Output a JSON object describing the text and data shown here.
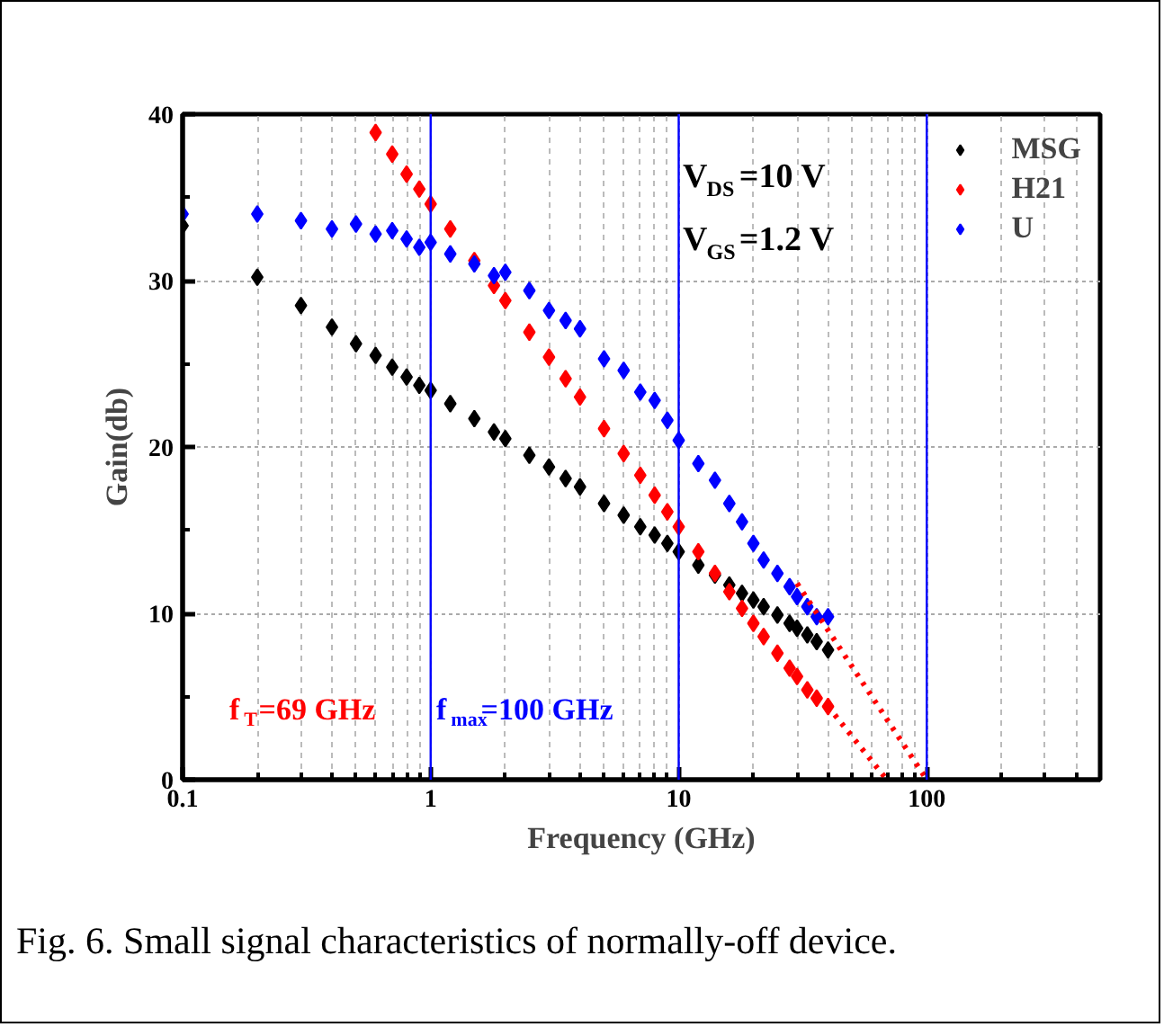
{
  "chart_data": {
    "type": "scatter",
    "xlabel": "Frequency (GHz)",
    "ylabel": "Gain(db)",
    "log": "x",
    "xlim": [
      0.1,
      500
    ],
    "ylim": [
      0,
      40
    ],
    "xticks": [
      0.1,
      1,
      10,
      100
    ],
    "yticks": [
      0,
      10,
      20,
      30,
      40
    ],
    "grid": true,
    "legend": "top right",
    "marker": "diamond",
    "series": [
      {
        "name": "MSG",
        "color": "#000000",
        "x": [
          0.1,
          0.2,
          0.3,
          0.4,
          0.5,
          0.6,
          0.7,
          0.8,
          0.9,
          1,
          1.2,
          1.5,
          1.8,
          2,
          2.5,
          3,
          3.5,
          4,
          5,
          6,
          7,
          8,
          9,
          10,
          12,
          14,
          16,
          18,
          20,
          22,
          25,
          28,
          30,
          33,
          36,
          40
        ],
        "values": [
          33.3,
          30.2,
          28.5,
          27.2,
          26.2,
          25.5,
          24.8,
          24.2,
          23.7,
          23.4,
          22.6,
          21.7,
          20.9,
          20.5,
          19.5,
          18.8,
          18.1,
          17.6,
          16.6,
          15.9,
          15.2,
          14.7,
          14.2,
          13.7,
          12.9,
          12.3,
          11.7,
          11.2,
          10.8,
          10.4,
          9.9,
          9.4,
          9.1,
          8.7,
          8.3,
          7.8
        ]
      },
      {
        "name": "H21",
        "color": "#ff0000",
        "x": [
          0.6,
          0.7,
          0.8,
          0.9,
          1,
          1.2,
          1.5,
          1.8,
          2,
          2.5,
          3,
          3.5,
          4,
          5,
          6,
          7,
          8,
          9,
          10,
          12,
          14,
          16,
          18,
          20,
          22,
          25,
          28,
          30,
          33,
          36,
          40
        ],
        "values": [
          38.9,
          37.6,
          36.4,
          35.5,
          34.6,
          33.1,
          31.2,
          29.7,
          28.8,
          26.9,
          25.4,
          24.1,
          23.0,
          21.1,
          19.6,
          18.3,
          17.1,
          16.1,
          15.2,
          13.7,
          12.4,
          11.3,
          10.3,
          9.4,
          8.6,
          7.6,
          6.7,
          6.2,
          5.4,
          4.9,
          4.4
        ]
      },
      {
        "name": "U",
        "color": "#0000ff",
        "x": [
          0.1,
          0.2,
          0.3,
          0.4,
          0.5,
          0.6,
          0.7,
          0.8,
          0.9,
          1,
          1.2,
          1.5,
          1.8,
          2,
          2.5,
          3,
          3.5,
          4,
          5,
          6,
          7,
          8,
          9,
          10,
          12,
          14,
          16,
          18,
          20,
          22,
          25,
          28,
          30,
          33,
          36,
          40
        ],
        "values": [
          34.0,
          34.0,
          33.6,
          33.1,
          33.4,
          32.8,
          33.0,
          32.5,
          32.0,
          32.3,
          31.6,
          31.0,
          30.3,
          30.5,
          29.4,
          28.2,
          27.6,
          27.1,
          25.3,
          24.6,
          23.3,
          22.8,
          21.6,
          20.4,
          19.0,
          18.0,
          16.6,
          15.5,
          14.2,
          13.2,
          12.4,
          11.6,
          11.0,
          10.4,
          9.8,
          9.8
        ]
      },
      {
        "type": "line",
        "color": "#ff0000",
        "line_style": "dotted",
        "marker": "none",
        "x": [
          40,
          69
        ],
        "values": [
          4.4,
          0
        ]
      },
      {
        "type": "line",
        "color": "#ff0000",
        "line_style": "dotted",
        "marker": "none",
        "x": [
          30,
          100
        ],
        "values": [
          11.8,
          0
        ]
      }
    ],
    "ref_lines": [
      {
        "axis": "x",
        "value": 1,
        "color": "#0000ff"
      },
      {
        "axis": "x",
        "value": 10,
        "color": "#0000ff"
      },
      {
        "axis": "x",
        "value": 100,
        "color": "#0000ff"
      }
    ],
    "annotations": [
      "V$_{DS}$=10 V",
      "V$_{GS}$=1.2 V",
      "f$_{T}$=69 GHz",
      "f$_{max}$=100 GHz",
      "Fig. 6. Small signal characteristics of normally-off device."
    ]
  }
}
